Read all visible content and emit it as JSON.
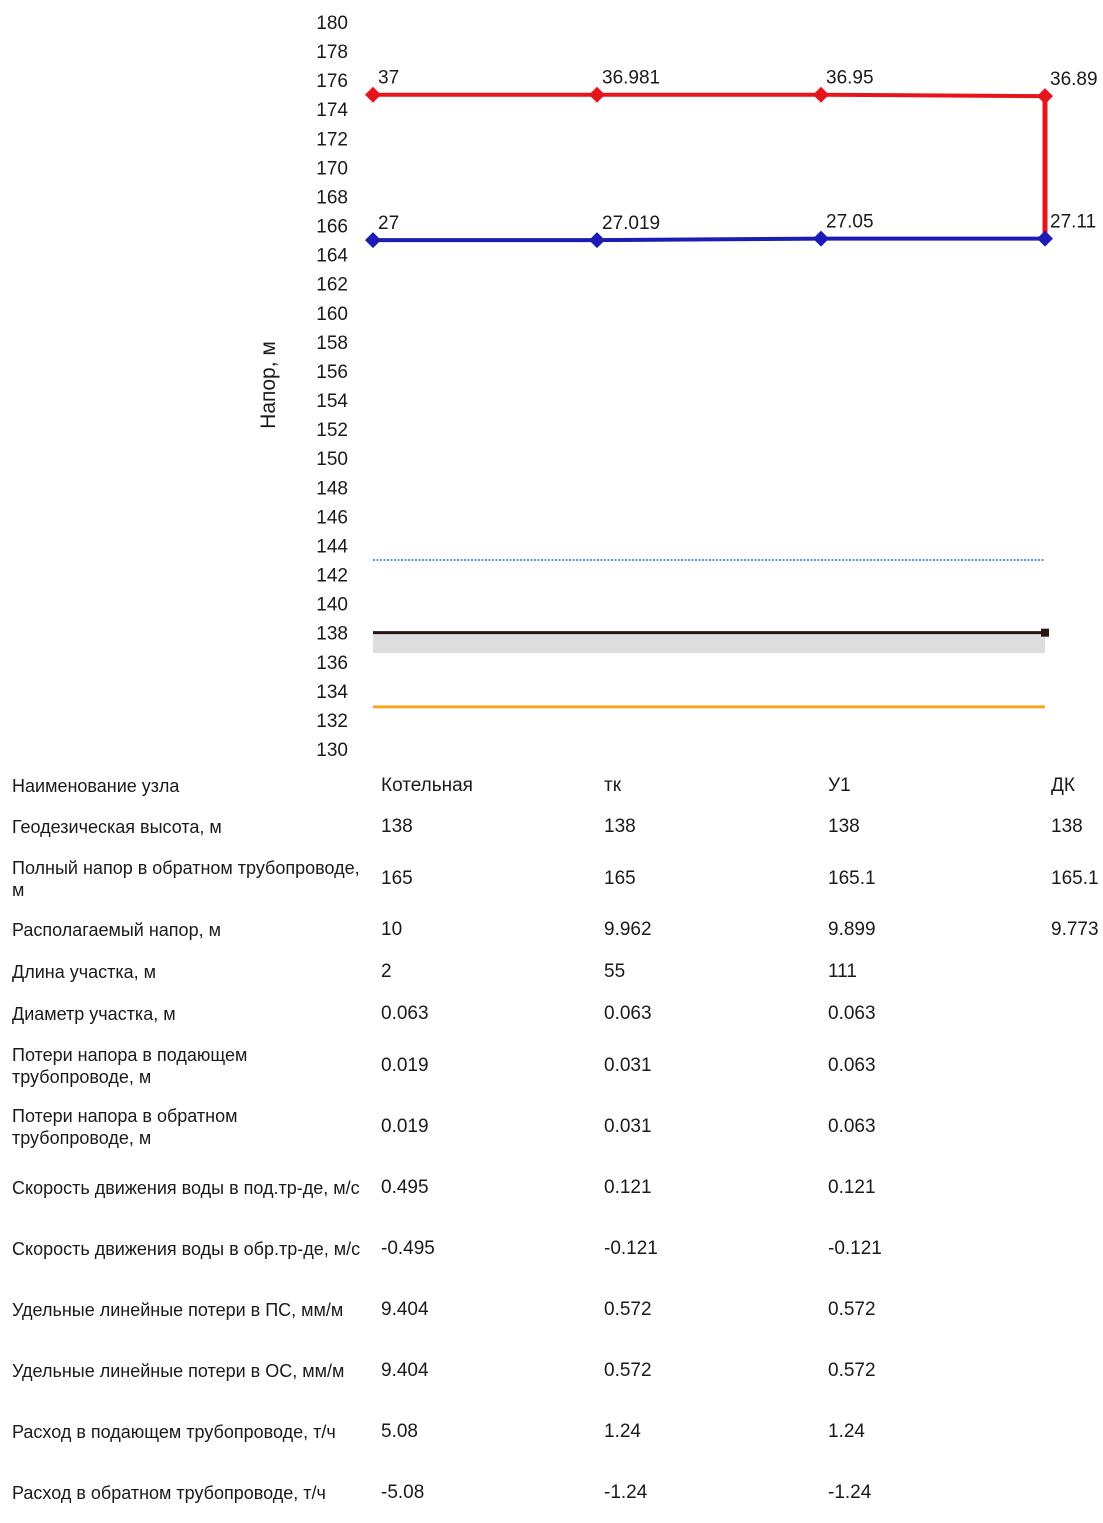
{
  "chart_data": {
    "type": "line",
    "ylabel": "Напор, м",
    "ylim": [
      130,
      180
    ],
    "ytick_step": 2,
    "categories": [
      "Котельная",
      "тк",
      "У1",
      "ДК"
    ],
    "series": [
      {
        "name": "",
        "color": "#e8141b",
        "values": [
          175,
          175,
          175,
          174.9
        ],
        "labels": [
          "37",
          "36.981",
          "36.95",
          "36.89"
        ],
        "marker": "diamond"
      },
      {
        "name": "",
        "color": "#1c1cb4",
        "values": [
          165,
          165,
          165.1,
          165.1
        ],
        "labels": [
          "27",
          "27.019",
          "27.05",
          "27.11"
        ],
        "marker": "diamond"
      }
    ],
    "reference_lines": [
      {
        "value": 143,
        "color": "#1f77b4",
        "style": "dotted"
      },
      {
        "value": 138,
        "color": "#2a1414",
        "style": "solid",
        "band_below": 136.6
      },
      {
        "value": 132.9,
        "color": "#f5a623",
        "style": "solid"
      }
    ]
  },
  "table": {
    "header": {
      "label": "Наименование узла",
      "cells": [
        "Котельная",
        "тк",
        "У1",
        "ДК"
      ]
    },
    "rows": [
      {
        "label": "Геодезическая высота, м",
        "cells": [
          "138",
          "138",
          "138",
          "138"
        ]
      },
      {
        "label": "Полный напор в обратном трубопроводе, м",
        "cells": [
          "165",
          "165",
          "165.1",
          "165.1"
        ]
      },
      {
        "label": "Располагаемый напор, м",
        "cells": [
          "10",
          "9.962",
          "9.899",
          "9.773"
        ]
      },
      {
        "label": "Длина участка, м",
        "cells": [
          "2",
          "55",
          "111",
          ""
        ]
      },
      {
        "label": "Диаметр участка, м",
        "cells": [
          "0.063",
          "0.063",
          "0.063",
          ""
        ]
      },
      {
        "label": "Потери напора в подающем трубопроводе, м",
        "cells": [
          "0.019",
          "0.031",
          "0.063",
          ""
        ]
      },
      {
        "label": "Потери напора в обратном трубопроводе, м",
        "cells": [
          "0.019",
          "0.031",
          "0.063",
          ""
        ]
      },
      {
        "label": "Скорость движения воды в под.тр-де, м/с",
        "cells": [
          "0.495",
          "0.121",
          "0.121",
          ""
        ]
      },
      {
        "label": "Скорость движения воды в обр.тр-де, м/с",
        "cells": [
          "-0.495",
          "-0.121",
          "-0.121",
          ""
        ]
      },
      {
        "label": "Удельные линейные потери в ПС, мм/м",
        "cells": [
          "9.404",
          "0.572",
          "0.572",
          ""
        ]
      },
      {
        "label": "Удельные линейные потери в ОС, мм/м",
        "cells": [
          "9.404",
          "0.572",
          "0.572",
          ""
        ]
      },
      {
        "label": "Расход в подающем трубопроводе, т/ч",
        "cells": [
          "5.08",
          "1.24",
          "1.24",
          ""
        ]
      },
      {
        "label": "Расход в обратном трубопроводе, т/ч",
        "cells": [
          "-5.08",
          "-1.24",
          "-1.24",
          ""
        ]
      }
    ]
  }
}
